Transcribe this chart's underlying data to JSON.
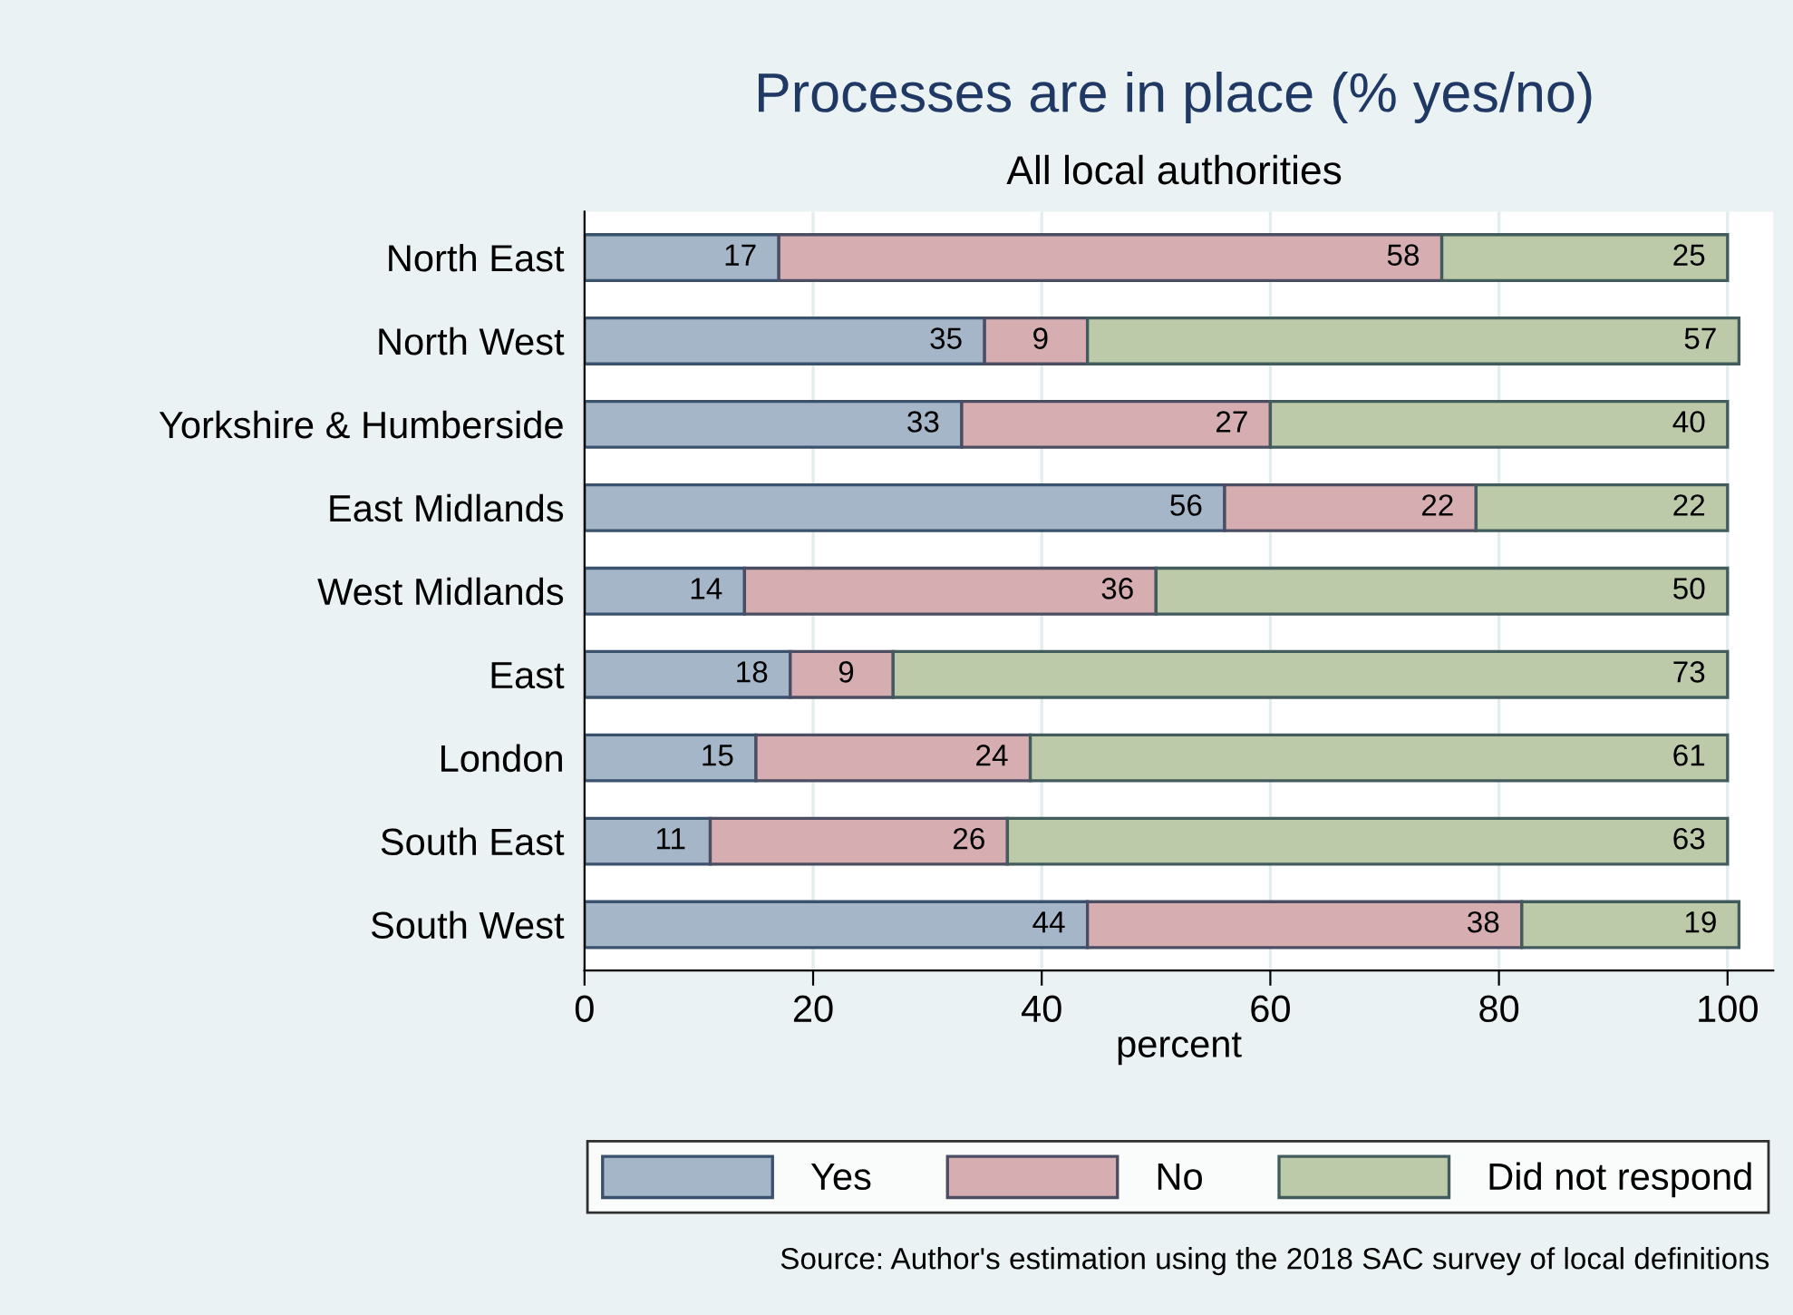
{
  "chart_data": {
    "type": "bar",
    "orientation": "horizontal",
    "stacked": true,
    "title": "Processes are in place (% yes/no)",
    "subtitle": "All local authorities",
    "xlabel": "percent",
    "categories": [
      "North East",
      "North West",
      "Yorkshire & Humberside",
      "East Midlands",
      "West Midlands",
      "East",
      "London",
      "South East",
      "South West"
    ],
    "series": [
      {
        "name": "Yes",
        "color": "#a5b6c8",
        "values": [
          17,
          35,
          33,
          56,
          14,
          18,
          15,
          11,
          44
        ]
      },
      {
        "name": "No",
        "color": "#d6aeb2",
        "values": [
          58,
          9,
          27,
          22,
          36,
          9,
          24,
          26,
          38
        ]
      },
      {
        "name": "Did not respond",
        "color": "#bccaa9",
        "values": [
          25,
          57,
          40,
          22,
          50,
          73,
          61,
          63,
          19
        ]
      }
    ],
    "xlim": [
      0,
      104
    ],
    "xticks": [
      0,
      20,
      40,
      60,
      80,
      100
    ],
    "grid": "x",
    "legend": "bottom",
    "data_labels": true,
    "annotations": [
      "Source: Author's estimation using the 2018 SAC survey of local definitions"
    ]
  }
}
